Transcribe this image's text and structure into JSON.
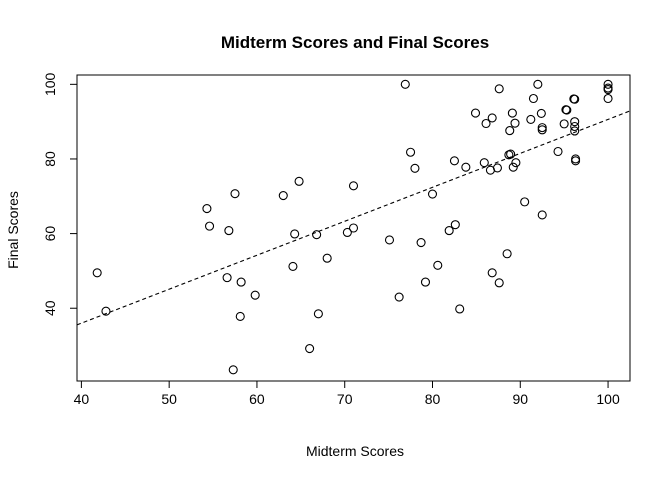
{
  "chart_data": {
    "type": "scatter",
    "title": "Midterm Scores and Final Scores",
    "xlabel": "Midterm Scores",
    "ylabel": "Final Scores",
    "xlim": [
      39.5,
      102.5
    ],
    "ylim": [
      20.5,
      102.5
    ],
    "x_ticks": [
      40,
      50,
      60,
      70,
      80,
      90,
      100
    ],
    "y_ticks": [
      40,
      60,
      80,
      100
    ],
    "grid": false,
    "points": [
      {
        "x": 41.8,
        "y": 49.5
      },
      {
        "x": 42.8,
        "y": 39.2
      },
      {
        "x": 54.3,
        "y": 66.7
      },
      {
        "x": 54.6,
        "y": 62.0
      },
      {
        "x": 56.6,
        "y": 48.2
      },
      {
        "x": 56.8,
        "y": 60.8
      },
      {
        "x": 57.3,
        "y": 23.5
      },
      {
        "x": 57.5,
        "y": 70.7
      },
      {
        "x": 58.1,
        "y": 37.8
      },
      {
        "x": 58.2,
        "y": 47.0
      },
      {
        "x": 59.8,
        "y": 43.5
      },
      {
        "x": 63.0,
        "y": 70.2
      },
      {
        "x": 64.1,
        "y": 51.2
      },
      {
        "x": 64.3,
        "y": 59.9
      },
      {
        "x": 64.8,
        "y": 74.0
      },
      {
        "x": 66.0,
        "y": 29.2
      },
      {
        "x": 66.8,
        "y": 59.7
      },
      {
        "x": 67.0,
        "y": 38.5
      },
      {
        "x": 68.0,
        "y": 53.4
      },
      {
        "x": 70.3,
        "y": 60.3
      },
      {
        "x": 71.0,
        "y": 61.5
      },
      {
        "x": 71.0,
        "y": 72.8
      },
      {
        "x": 75.1,
        "y": 58.3
      },
      {
        "x": 76.2,
        "y": 43.0
      },
      {
        "x": 76.9,
        "y": 100.0
      },
      {
        "x": 77.5,
        "y": 81.8
      },
      {
        "x": 78.0,
        "y": 77.5
      },
      {
        "x": 78.7,
        "y": 57.6
      },
      {
        "x": 79.2,
        "y": 47.0
      },
      {
        "x": 80.0,
        "y": 70.6
      },
      {
        "x": 80.6,
        "y": 51.5
      },
      {
        "x": 81.9,
        "y": 60.8
      },
      {
        "x": 82.5,
        "y": 79.5
      },
      {
        "x": 82.6,
        "y": 62.4
      },
      {
        "x": 83.1,
        "y": 39.8
      },
      {
        "x": 83.8,
        "y": 77.8
      },
      {
        "x": 84.9,
        "y": 92.3
      },
      {
        "x": 85.9,
        "y": 79.0
      },
      {
        "x": 86.1,
        "y": 89.5
      },
      {
        "x": 86.6,
        "y": 77.0
      },
      {
        "x": 86.8,
        "y": 91.0
      },
      {
        "x": 86.8,
        "y": 49.5
      },
      {
        "x": 87.4,
        "y": 77.6
      },
      {
        "x": 87.6,
        "y": 98.8
      },
      {
        "x": 87.6,
        "y": 46.8
      },
      {
        "x": 88.5,
        "y": 54.6
      },
      {
        "x": 88.7,
        "y": 81.1
      },
      {
        "x": 88.8,
        "y": 87.6
      },
      {
        "x": 88.9,
        "y": 81.3
      },
      {
        "x": 89.1,
        "y": 92.3
      },
      {
        "x": 89.2,
        "y": 77.8
      },
      {
        "x": 89.4,
        "y": 89.6
      },
      {
        "x": 89.5,
        "y": 79.0
      },
      {
        "x": 90.5,
        "y": 68.5
      },
      {
        "x": 91.2,
        "y": 90.6
      },
      {
        "x": 91.5,
        "y": 96.2
      },
      {
        "x": 92.0,
        "y": 100.0
      },
      {
        "x": 92.4,
        "y": 92.2
      },
      {
        "x": 92.5,
        "y": 87.8
      },
      {
        "x": 92.5,
        "y": 88.4
      },
      {
        "x": 92.5,
        "y": 65.0
      },
      {
        "x": 94.3,
        "y": 82.0
      },
      {
        "x": 95.0,
        "y": 89.4
      },
      {
        "x": 95.2,
        "y": 93.2
      },
      {
        "x": 95.3,
        "y": 93.1
      },
      {
        "x": 96.1,
        "y": 96.1
      },
      {
        "x": 96.2,
        "y": 96.0
      },
      {
        "x": 96.2,
        "y": 90.0
      },
      {
        "x": 96.2,
        "y": 88.7
      },
      {
        "x": 96.2,
        "y": 87.5
      },
      {
        "x": 96.3,
        "y": 80.0
      },
      {
        "x": 96.3,
        "y": 79.5
      },
      {
        "x": 100.0,
        "y": 100.0
      },
      {
        "x": 100.0,
        "y": 99.0
      },
      {
        "x": 100.0,
        "y": 98.6
      },
      {
        "x": 100.0,
        "y": 96.2
      }
    ],
    "regression_line": {
      "style": "dashed",
      "intercept": -0.4,
      "slope": 0.91
    }
  }
}
